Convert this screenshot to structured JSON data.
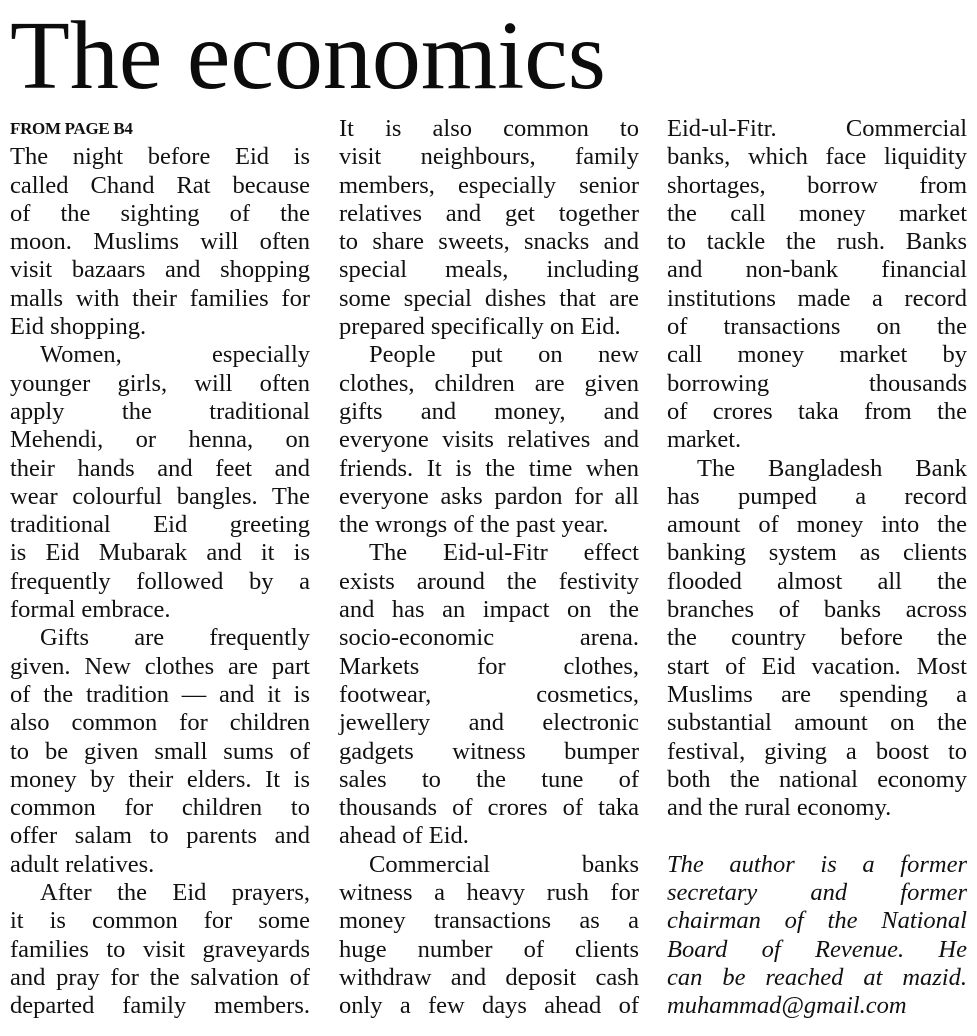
{
  "headline": "The economics",
  "kicker": "FROM PAGE B4",
  "columns": [
    {
      "paragraphs": [
        {
          "indent": false,
          "continues": false,
          "lines": [
            "The night before Eid is",
            "called Chand Rat because",
            "of the sighting of the",
            "moon. Muslims will often",
            "visit bazaars and shopping",
            "malls with their families for",
            "Eid shopping."
          ]
        },
        {
          "indent": true,
          "continues": false,
          "lines": [
            "Women, especially",
            "younger girls, will often",
            "apply the traditional",
            "Mehendi, or henna, on",
            "their hands and feet and",
            "wear colourful bangles. The",
            "traditional Eid greeting",
            "is Eid Mubarak and it is",
            "frequently followed by a",
            "formal embrace."
          ]
        },
        {
          "indent": true,
          "continues": false,
          "lines": [
            "Gifts are frequently",
            "given. New clothes are part",
            "of the tradition — and it is",
            "also common for children",
            "to be given small sums of",
            "money by their elders. It is",
            "common for children to",
            "offer salam to parents and",
            "adult relatives."
          ]
        },
        {
          "indent": true,
          "continues": true,
          "lines": [
            "After the Eid prayers,",
            "it is common for some",
            "families to visit graveyards",
            "and pray for the salvation of",
            "departed family members."
          ]
        }
      ]
    },
    {
      "paragraphs": [
        {
          "indent": false,
          "continues": false,
          "lines": [
            "It is also common to",
            "visit neighbours, family",
            "members, especially senior",
            "relatives and get together",
            "to share sweets, snacks and",
            "special meals, including",
            "some special dishes that are",
            "prepared specifically on Eid."
          ]
        },
        {
          "indent": true,
          "continues": false,
          "lines": [
            "People put on new",
            "clothes, children are given",
            "gifts and money, and",
            "everyone visits relatives and",
            "friends. It is the time when",
            "everyone asks pardon for all",
            "the wrongs of the past year."
          ]
        },
        {
          "indent": true,
          "continues": false,
          "lines": [
            "The Eid-ul-Fitr effect",
            "exists around the festivity",
            "and has an impact on the",
            "socio-economic arena.",
            "Markets for clothes,",
            "footwear, cosmetics,",
            "jewellery and electronic",
            "gadgets witness bumper",
            "sales to the tune of",
            "thousands of crores of taka",
            "ahead of Eid."
          ]
        },
        {
          "indent": true,
          "continues": true,
          "lines": [
            "Commercial banks",
            "witness a heavy rush for",
            "money transactions as a",
            "huge number of clients",
            "withdraw and deposit cash",
            "only a few days ahead of"
          ]
        }
      ]
    },
    {
      "paragraphs": [
        {
          "indent": false,
          "continues": false,
          "lines": [
            "Eid-ul-Fitr. Commercial",
            "banks, which face liquidity",
            "shortages, borrow from",
            "the call money market",
            "to tackle the rush. Banks",
            "and non-bank financial",
            "institutions made a record",
            "of transactions on the",
            "call money market by",
            "borrowing thousands",
            "of crores taka from the",
            "market."
          ]
        },
        {
          "indent": true,
          "continues": false,
          "lines": [
            "The Bangladesh Bank",
            "has pumped a record",
            "amount of money into the",
            "banking system as clients",
            "flooded almost all the",
            "branches of banks across",
            "the country before the",
            "start of Eid vacation. Most",
            "Muslims are spending a",
            "substantial amount on the",
            "festival, giving a boost to",
            "both the national economy",
            "and the rural economy."
          ]
        },
        {
          "indent": false,
          "continues": true,
          "italic": true,
          "spaceBefore": true,
          "lines": [
            "The author is a former",
            "secretary and former",
            "chairman of the National",
            "Board of Revenue. He",
            "can be reached at mazid.",
            "muhammad@gmail.com"
          ]
        }
      ]
    }
  ]
}
